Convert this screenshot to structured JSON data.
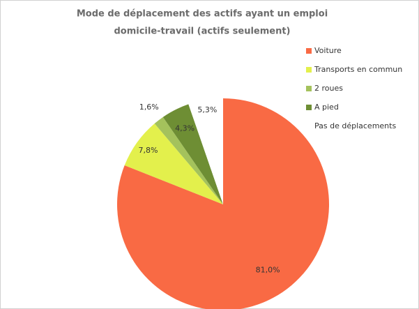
{
  "chart_data": {
    "type": "pie",
    "title": [
      "Mode de déplacement des actifs ayant un emploi",
      "domicile-travail (actifs seulement)"
    ],
    "categories": [
      "Voiture",
      "Transports en commun",
      "2 roues",
      "A pied",
      "Pas de déplacements"
    ],
    "values": [
      81.0,
      7.8,
      1.6,
      4.3,
      5.3
    ],
    "value_labels": [
      "81,0%",
      "7,8%",
      "1,6%",
      "4,3%",
      "5,3%"
    ],
    "colors": [
      "#f96a44",
      "#e3f04c",
      "#a4c25c",
      "#6e8e34",
      "#ffffff"
    ],
    "legend": "right"
  }
}
